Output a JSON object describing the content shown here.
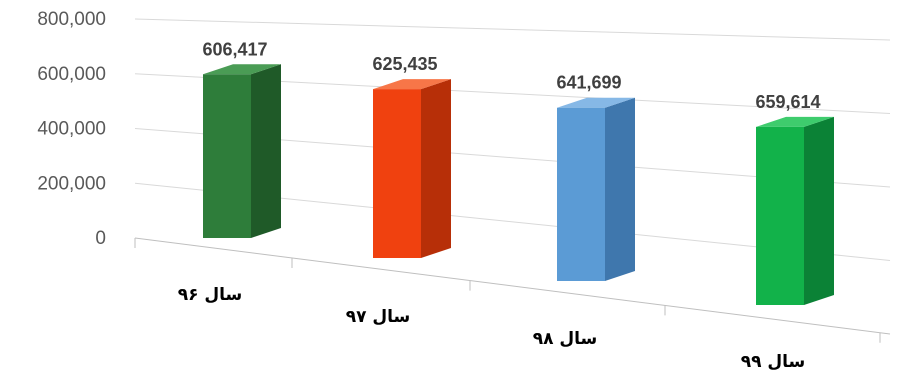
{
  "chart_data": {
    "type": "bar",
    "style": "3d-column",
    "title": "",
    "xlabel": "",
    "ylabel": "",
    "categories": [
      "سال ۹۶",
      "سال ۹۷",
      "سال ۹۸",
      "سال ۹۹"
    ],
    "values": [
      606417,
      625435,
      641699,
      659614
    ],
    "data_labels": [
      "606,417",
      "625,435",
      "641,699",
      "659,614"
    ],
    "yticks": [
      "0",
      "200,000",
      "400,000",
      "600,000",
      "800,000"
    ],
    "ylim": [
      0,
      800000
    ],
    "grid": true,
    "legend": "none",
    "colors": {
      "bars": [
        "#2e7d3a",
        "#f0410f",
        "#5b9bd5",
        "#12b24a"
      ],
      "bar_sides": [
        "#1f5a28",
        "#b72f08",
        "#3f77ad",
        "#0b8236"
      ],
      "bar_tops": [
        "#4a9c55",
        "#f77648",
        "#86b8e6",
        "#3ecc6d"
      ]
    }
  }
}
